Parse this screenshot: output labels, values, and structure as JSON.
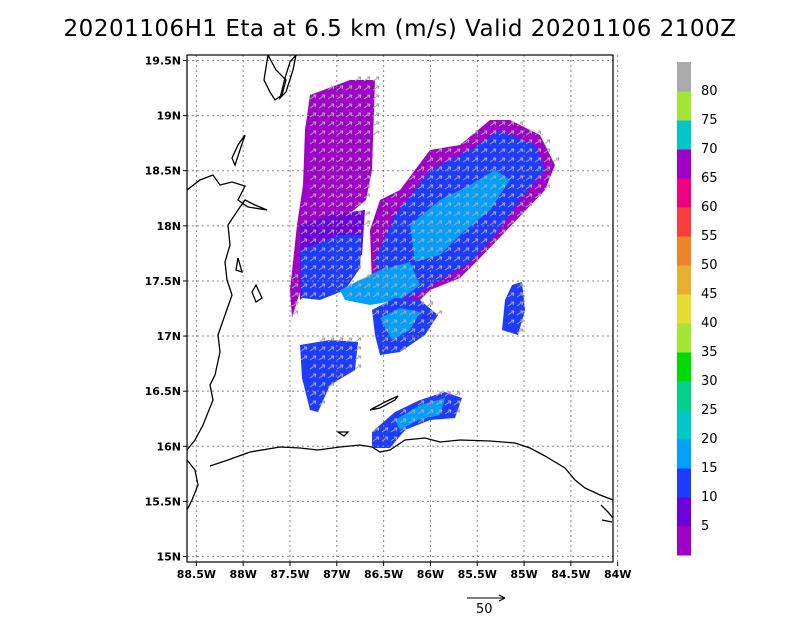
{
  "title": "20201106H1 Eta at 6.5 km (m/s) Valid 20201106 2100Z",
  "map": {
    "lat_ticks": [
      "19.5N",
      "19N",
      "18.5N",
      "18N",
      "17.5N",
      "17N",
      "16.5N",
      "16N",
      "15.5N",
      "15N"
    ],
    "lon_ticks": [
      "88.5W",
      "88W",
      "87.5W",
      "87W",
      "86.5W",
      "86W",
      "85.5W",
      "85W",
      "84.5W",
      "84W"
    ],
    "lat_range": [
      14.95,
      19.55
    ],
    "lon_range": [
      -88.6,
      -84.05
    ]
  },
  "colorbar": {
    "labels": [
      "5",
      "10",
      "15",
      "20",
      "25",
      "30",
      "35",
      "40",
      "45",
      "50",
      "55",
      "60",
      "65",
      "70",
      "75",
      "80"
    ],
    "colors": [
      "#a000c8",
      "#6e00dc",
      "#1e3cff",
      "#00a0ff",
      "#00c8c8",
      "#00d28c",
      "#00dc00",
      "#a0e632",
      "#e6dc32",
      "#e6af2d",
      "#f08228",
      "#fa3c3c",
      "#f00082",
      "#a000c8",
      "#00c8c8",
      "#a0e632",
      "#aaaaaa"
    ]
  },
  "scale_arrow": {
    "label": "50"
  }
}
